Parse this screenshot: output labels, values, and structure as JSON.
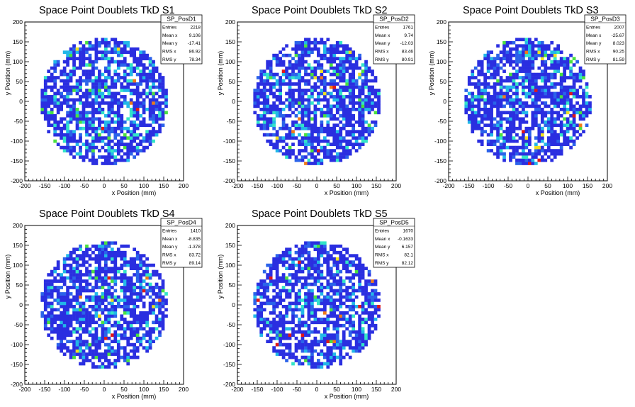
{
  "chart_data": [
    {
      "type": "heatmap",
      "title": "Space Point Doublets TkD S1",
      "xlabel": "x Position (mm)",
      "ylabel": "y Position (mm)",
      "xlim": [
        -200,
        200
      ],
      "ylim": [
        -200,
        200
      ],
      "xticks": [
        "-200",
        "-150",
        "-100",
        "-50",
        "0",
        "50",
        "100",
        "150",
        "200"
      ],
      "yticks": [
        "-200",
        "-150",
        "-100",
        "-50",
        "0",
        "50",
        "100",
        "150",
        "200"
      ],
      "detector_radius": 160,
      "stats": {
        "name": "SP_PosD1",
        "rows": [
          {
            "label": "Entries",
            "value": "2218"
          },
          {
            "label": "Mean x",
            "value": "9.106"
          },
          {
            "label": "Mean y",
            "value": "-17.41"
          },
          {
            "label": "RMS x",
            "value": "86.92"
          },
          {
            "label": "RMS y",
            "value": "78.34"
          }
        ]
      }
    },
    {
      "type": "heatmap",
      "title": "Space Point Doublets TkD S2",
      "xlabel": "x Position (mm)",
      "ylabel": "y Position (mm)",
      "xlim": [
        -200,
        200
      ],
      "ylim": [
        -200,
        200
      ],
      "xticks": [
        "-200",
        "-150",
        "-100",
        "-50",
        "0",
        "50",
        "100",
        "150",
        "200"
      ],
      "yticks": [
        "-200",
        "-150",
        "-100",
        "-50",
        "0",
        "50",
        "100",
        "150",
        "200"
      ],
      "detector_radius": 160,
      "stats": {
        "name": "SP_PosD2",
        "rows": [
          {
            "label": "Entries",
            "value": "1761"
          },
          {
            "label": "Mean x",
            "value": "9.74"
          },
          {
            "label": "Mean y",
            "value": "-12.03"
          },
          {
            "label": "RMS x",
            "value": "83.46"
          },
          {
            "label": "RMS y",
            "value": "80.91"
          }
        ]
      }
    },
    {
      "type": "heatmap",
      "title": "Space Point Doublets TkD S3",
      "xlabel": "x Position (mm)",
      "ylabel": "y Position (mm)",
      "xlim": [
        -200,
        200
      ],
      "ylim": [
        -200,
        200
      ],
      "xticks": [
        "-200",
        "-150",
        "-100",
        "-50",
        "0",
        "50",
        "100",
        "150",
        "200"
      ],
      "yticks": [
        "-200",
        "-150",
        "-100",
        "-50",
        "0",
        "50",
        "100",
        "150",
        "200"
      ],
      "detector_radius": 160,
      "stats": {
        "name": "SP_PosD3",
        "rows": [
          {
            "label": "Entries",
            "value": "2007"
          },
          {
            "label": "Mean x",
            "value": "-25.67"
          },
          {
            "label": "Mean y",
            "value": "8.023"
          },
          {
            "label": "RMS x",
            "value": "90.25"
          },
          {
            "label": "RMS y",
            "value": "81.59"
          }
        ]
      }
    },
    {
      "type": "heatmap",
      "title": "Space Point Doublets TkD S4",
      "xlabel": "x Position (mm)",
      "ylabel": "y Position (mm)",
      "xlim": [
        -200,
        200
      ],
      "ylim": [
        -200,
        200
      ],
      "xticks": [
        "-200",
        "-150",
        "-100",
        "-50",
        "0",
        "50",
        "100",
        "150",
        "200"
      ],
      "yticks": [
        "-200",
        "-150",
        "-100",
        "-50",
        "0",
        "50",
        "100",
        "150",
        "200"
      ],
      "detector_radius": 160,
      "stats": {
        "name": "SP_PosD4",
        "rows": [
          {
            "label": "Entries",
            "value": "1410"
          },
          {
            "label": "Mean x",
            "value": "-8.835"
          },
          {
            "label": "Mean y",
            "value": "-1.378"
          },
          {
            "label": "RMS x",
            "value": "83.72"
          },
          {
            "label": "RMS y",
            "value": "89.14"
          }
        ]
      }
    },
    {
      "type": "heatmap",
      "title": "Space Point Doublets TkD S5",
      "xlabel": "x Position (mm)",
      "ylabel": "y Position (mm)",
      "xlim": [
        -200,
        200
      ],
      "ylim": [
        -200,
        200
      ],
      "xticks": [
        "-200",
        "-150",
        "-100",
        "-50",
        "0",
        "50",
        "100",
        "150",
        "200"
      ],
      "yticks": [
        "-200",
        "-150",
        "-100",
        "-50",
        "0",
        "50",
        "100",
        "150",
        "200"
      ],
      "detector_radius": 160,
      "stats": {
        "name": "SP_PosD5",
        "rows": [
          {
            "label": "Entries",
            "value": "1670"
          },
          {
            "label": "Mean x",
            "value": "-0.1633"
          },
          {
            "label": "Mean y",
            "value": "6.157"
          },
          {
            "label": "RMS x",
            "value": "82.1"
          },
          {
            "label": "RMS y",
            "value": "82.12"
          }
        ]
      }
    }
  ],
  "colors": {
    "palette": [
      "#2a2ee0",
      "#2b63ea",
      "#22b8e8",
      "#33e4c8",
      "#4ae040",
      "#f0e020",
      "#f07a18",
      "#e01818"
    ],
    "frame": "#000000",
    "background": "#ffffff"
  }
}
